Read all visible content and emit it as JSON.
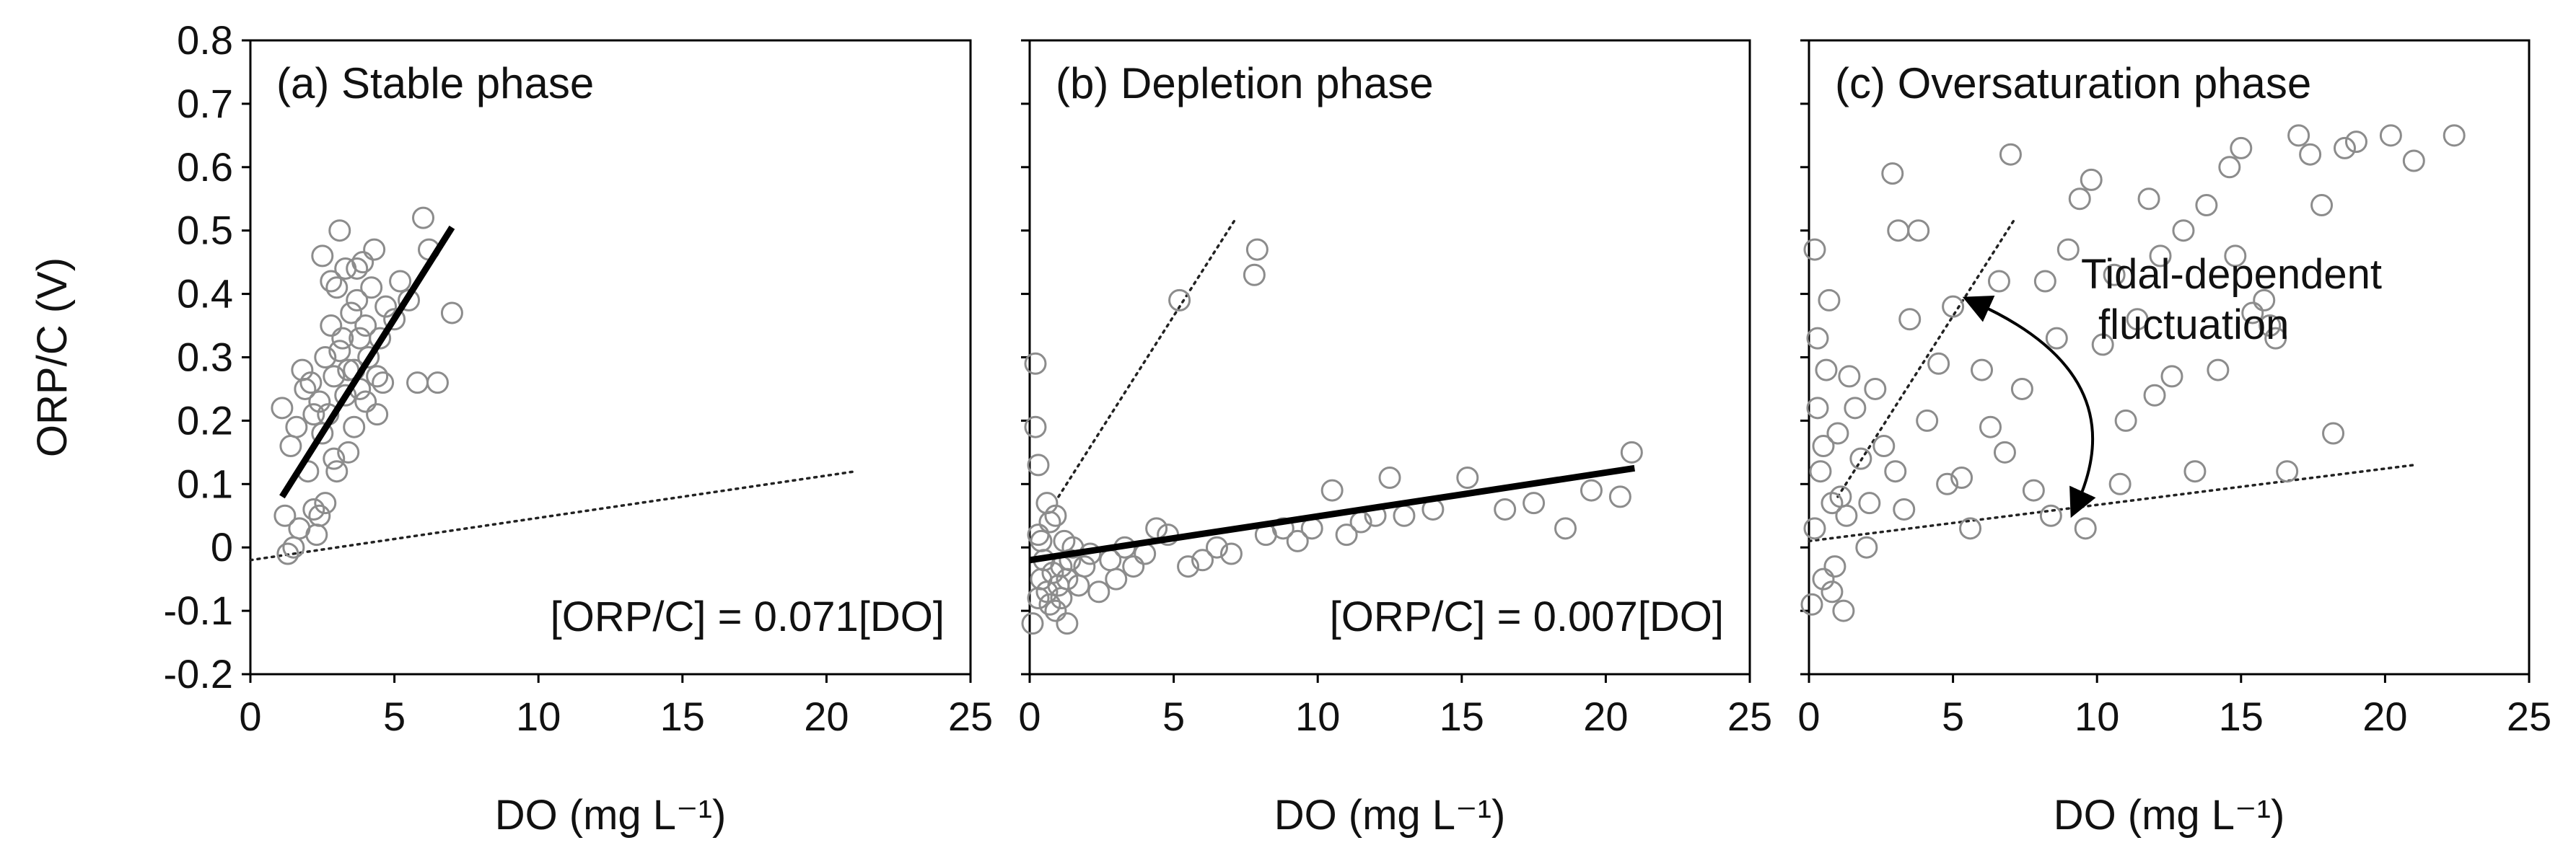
{
  "chart_data": [
    {
      "type": "scatter",
      "title": "(a) Stable phase",
      "xlabel": "DO (mg L⁻¹)",
      "ylabel": "ORP/C (V)",
      "xlim": [
        0,
        25
      ],
      "ylim": [
        -0.2,
        0.8
      ],
      "grid": false,
      "xticks": [
        "0",
        "5",
        "10",
        "15",
        "20",
        "25"
      ],
      "yticks": [
        "-0.2",
        "-0.1",
        "0",
        "0.1",
        "0.2",
        "0.3",
        "0.4",
        "0.5",
        "0.6",
        "0.7",
        "0.8"
      ],
      "equation": "[ORP/C] = 0.071[DO]",
      "fit_line": {
        "x": [
          1.1,
          7.0
        ],
        "y": [
          0.08,
          0.505
        ],
        "style": "solid"
      },
      "ref_lines": [
        {
          "x": [
            0,
            21
          ],
          "y": [
            -0.02,
            0.12
          ],
          "style": "dotted"
        }
      ],
      "points": [
        [
          1.3,
          -0.01
        ],
        [
          1.1,
          0.22
        ],
        [
          1.2,
          0.05
        ],
        [
          1.5,
          0.0
        ],
        [
          1.4,
          0.16
        ],
        [
          1.6,
          0.19
        ],
        [
          1.7,
          0.03
        ],
        [
          1.8,
          0.28
        ],
        [
          1.9,
          0.25
        ],
        [
          2.0,
          0.12
        ],
        [
          2.1,
          0.26
        ],
        [
          2.2,
          0.21
        ],
        [
          2.3,
          0.02
        ],
        [
          2.4,
          0.05
        ],
        [
          2.5,
          0.46
        ],
        [
          2.6,
          0.3
        ],
        [
          2.7,
          0.21
        ],
        [
          2.8,
          0.35
        ],
        [
          2.9,
          0.14
        ],
        [
          3.0,
          0.41
        ],
        [
          3.1,
          0.5
        ],
        [
          3.2,
          0.33
        ],
        [
          3.3,
          0.44
        ],
        [
          3.4,
          0.15
        ],
        [
          3.5,
          0.37
        ],
        [
          3.6,
          0.28
        ],
        [
          3.7,
          0.39
        ],
        [
          3.8,
          0.33
        ],
        [
          3.9,
          0.45
        ],
        [
          4.0,
          0.23
        ],
        [
          4.1,
          0.3
        ],
        [
          4.2,
          0.41
        ],
        [
          4.3,
          0.47
        ],
        [
          4.4,
          0.27
        ],
        [
          4.5,
          0.33
        ],
        [
          4.6,
          0.26
        ],
        [
          4.7,
          0.38
        ],
        [
          5.0,
          0.36
        ],
        [
          5.2,
          0.42
        ],
        [
          5.5,
          0.39
        ],
        [
          5.8,
          0.26
        ],
        [
          6.0,
          0.52
        ],
        [
          6.2,
          0.47
        ],
        [
          6.5,
          0.26
        ],
        [
          7.0,
          0.37
        ],
        [
          2.2,
          0.06
        ],
        [
          2.6,
          0.07
        ],
        [
          3.0,
          0.12
        ],
        [
          3.4,
          0.28
        ],
        [
          3.8,
          0.25
        ],
        [
          2.8,
          0.42
        ],
        [
          3.3,
          0.24
        ],
        [
          2.5,
          0.18
        ],
        [
          3.6,
          0.19
        ],
        [
          4.0,
          0.35
        ],
        [
          3.1,
          0.31
        ],
        [
          2.9,
          0.27
        ],
        [
          2.4,
          0.23
        ],
        [
          4.4,
          0.21
        ],
        [
          3.7,
          0.44
        ]
      ]
    },
    {
      "type": "scatter",
      "title": "(b) Depletion phase",
      "xlabel": "DO (mg L⁻¹)",
      "ylabel": "",
      "xlim": [
        0,
        25
      ],
      "ylim": [
        -0.2,
        0.8
      ],
      "grid": false,
      "xticks": [
        "0",
        "5",
        "10",
        "15",
        "20",
        "25"
      ],
      "equation": "[ORP/C] = 0.007[DO]",
      "fit_line": {
        "x": [
          0,
          21
        ],
        "y": [
          -0.02,
          0.125
        ],
        "style": "solid"
      },
      "ref_lines": [
        {
          "x": [
            1.0,
            7.1
          ],
          "y": [
            0.08,
            0.515
          ],
          "style": "dotted"
        }
      ],
      "points": [
        [
          0.1,
          -0.12
        ],
        [
          0.2,
          0.29
        ],
        [
          0.2,
          0.19
        ],
        [
          0.3,
          0.13
        ],
        [
          0.3,
          0.02
        ],
        [
          0.4,
          -0.05
        ],
        [
          0.5,
          -0.02
        ],
        [
          0.6,
          0.07
        ],
        [
          0.7,
          -0.09
        ],
        [
          0.8,
          -0.04
        ],
        [
          0.9,
          0.05
        ],
        [
          1.0,
          -0.06
        ],
        [
          1.1,
          -0.03
        ],
        [
          1.2,
          0.01
        ],
        [
          1.3,
          -0.12
        ],
        [
          1.4,
          -0.02
        ],
        [
          1.5,
          0.0
        ],
        [
          1.7,
          -0.06
        ],
        [
          1.9,
          -0.03
        ],
        [
          2.1,
          -0.01
        ],
        [
          2.4,
          -0.07
        ],
        [
          2.8,
          -0.02
        ],
        [
          3.0,
          -0.05
        ],
        [
          3.3,
          0.0
        ],
        [
          3.6,
          -0.03
        ],
        [
          4.0,
          -0.01
        ],
        [
          4.4,
          0.03
        ],
        [
          4.8,
          0.02
        ],
        [
          5.2,
          0.39
        ],
        [
          5.5,
          -0.03
        ],
        [
          6.0,
          -0.02
        ],
        [
          6.5,
          0.0
        ],
        [
          7.0,
          -0.01
        ],
        [
          7.8,
          0.43
        ],
        [
          7.9,
          0.47
        ],
        [
          8.2,
          0.02
        ],
        [
          8.8,
          0.03
        ],
        [
          9.3,
          0.01
        ],
        [
          9.8,
          0.03
        ],
        [
          10.5,
          0.09
        ],
        [
          11.0,
          0.02
        ],
        [
          11.5,
          0.04
        ],
        [
          12.0,
          0.05
        ],
        [
          12.5,
          0.11
        ],
        [
          13.0,
          0.05
        ],
        [
          14.0,
          0.06
        ],
        [
          15.2,
          0.11
        ],
        [
          16.5,
          0.06
        ],
        [
          17.5,
          0.07
        ],
        [
          18.6,
          0.03
        ],
        [
          19.5,
          0.09
        ],
        [
          20.5,
          0.08
        ],
        [
          20.9,
          0.15
        ],
        [
          0.3,
          -0.08
        ],
        [
          0.6,
          -0.07
        ],
        [
          0.9,
          -0.1
        ],
        [
          1.1,
          -0.08
        ],
        [
          0.4,
          0.01
        ],
        [
          0.7,
          0.04
        ],
        [
          1.3,
          -0.05
        ]
      ]
    },
    {
      "type": "scatter",
      "title": "(c) Oversaturation phase",
      "xlabel": "DO (mg L⁻¹)",
      "ylabel": "",
      "xlim": [
        0,
        25
      ],
      "ylim": [
        -0.2,
        0.8
      ],
      "grid": false,
      "xticks": [
        "0",
        "5",
        "10",
        "15",
        "20",
        "25"
      ],
      "annotation": {
        "lines": [
          "Tidal-dependent",
          "fluctuation"
        ]
      },
      "ref_lines": [
        {
          "x": [
            1.0,
            7.1
          ],
          "y": [
            0.08,
            0.515
          ],
          "style": "dotted"
        },
        {
          "x": [
            0,
            21
          ],
          "y": [
            0.01,
            0.13
          ],
          "style": "dotted"
        }
      ],
      "points": [
        [
          0.1,
          -0.09
        ],
        [
          0.2,
          0.47
        ],
        [
          0.2,
          0.03
        ],
        [
          0.3,
          0.33
        ],
        [
          0.3,
          0.22
        ],
        [
          0.4,
          0.12
        ],
        [
          0.5,
          -0.05
        ],
        [
          0.6,
          0.28
        ],
        [
          0.7,
          0.39
        ],
        [
          0.8,
          0.07
        ],
        [
          0.9,
          -0.03
        ],
        [
          1.0,
          0.18
        ],
        [
          1.1,
          0.08
        ],
        [
          1.2,
          -0.1
        ],
        [
          1.4,
          0.27
        ],
        [
          1.6,
          0.22
        ],
        [
          1.8,
          0.14
        ],
        [
          2.0,
          0.0
        ],
        [
          2.3,
          0.25
        ],
        [
          2.6,
          0.16
        ],
        [
          2.9,
          0.59
        ],
        [
          3.1,
          0.5
        ],
        [
          3.3,
          0.06
        ],
        [
          3.5,
          0.36
        ],
        [
          3.8,
          0.5
        ],
        [
          4.1,
          0.2
        ],
        [
          4.5,
          0.29
        ],
        [
          5.0,
          0.38
        ],
        [
          5.3,
          0.11
        ],
        [
          5.6,
          0.03
        ],
        [
          6.0,
          0.28
        ],
        [
          6.3,
          0.19
        ],
        [
          6.6,
          0.42
        ],
        [
          7.0,
          0.62
        ],
        [
          7.4,
          0.25
        ],
        [
          7.8,
          0.09
        ],
        [
          8.2,
          0.42
        ],
        [
          8.6,
          0.33
        ],
        [
          9.0,
          0.47
        ],
        [
          9.4,
          0.55
        ],
        [
          9.8,
          0.58
        ],
        [
          10.2,
          0.32
        ],
        [
          10.6,
          0.43
        ],
        [
          11.0,
          0.2
        ],
        [
          11.4,
          0.36
        ],
        [
          11.8,
          0.55
        ],
        [
          12.2,
          0.46
        ],
        [
          12.6,
          0.27
        ],
        [
          13.0,
          0.5
        ],
        [
          13.4,
          0.12
        ],
        [
          13.8,
          0.54
        ],
        [
          14.2,
          0.28
        ],
        [
          14.6,
          0.6
        ],
        [
          15.0,
          0.63
        ],
        [
          15.4,
          0.37
        ],
        [
          15.8,
          0.39
        ],
        [
          16.2,
          0.33
        ],
        [
          16.6,
          0.12
        ],
        [
          17.0,
          0.65
        ],
        [
          17.4,
          0.62
        ],
        [
          17.8,
          0.54
        ],
        [
          18.2,
          0.18
        ],
        [
          18.6,
          0.63
        ],
        [
          19.0,
          0.64
        ],
        [
          20.2,
          0.65
        ],
        [
          21.0,
          0.61
        ],
        [
          22.4,
          0.65
        ],
        [
          8.4,
          0.05
        ],
        [
          9.6,
          0.03
        ],
        [
          10.8,
          0.1
        ],
        [
          4.8,
          0.1
        ],
        [
          3.0,
          0.12
        ],
        [
          1.3,
          0.05
        ],
        [
          0.5,
          0.16
        ],
        [
          0.8,
          -0.07
        ],
        [
          2.1,
          0.07
        ],
        [
          6.8,
          0.15
        ],
        [
          12.0,
          0.24
        ],
        [
          14.8,
          0.46
        ],
        [
          16.0,
          0.35
        ]
      ]
    }
  ]
}
